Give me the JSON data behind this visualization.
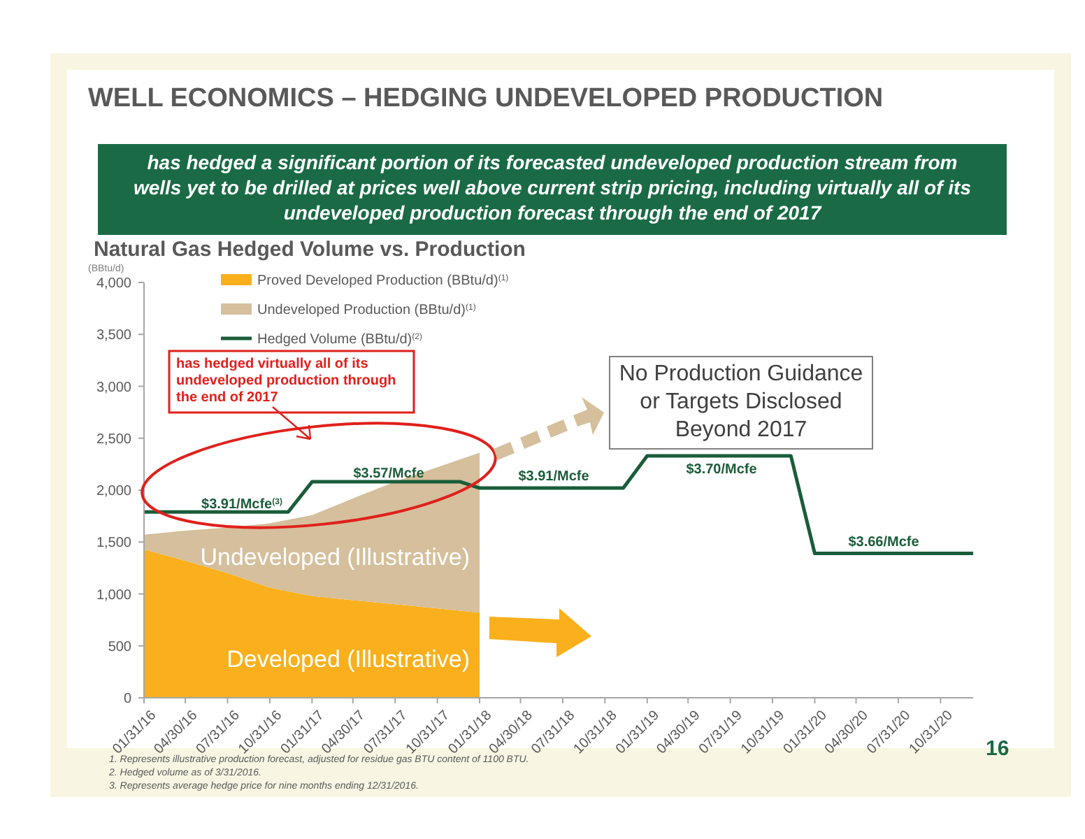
{
  "chart_data": {
    "type": "area",
    "title": "WELL ECONOMICS – HEDGING UNDEVELOPED  PRODUCTION",
    "subtitle": "has hedged a significant portion of its forecasted undeveloped production stream from wells yet to be drilled at prices well above current strip pricing, including virtually all of its undeveloped production forecast through the end of 2017",
    "ylabel": "(BBtu/d)",
    "stacked": true,
    "legend": "top left",
    "grid": false,
    "x": [
      "2016-01-31",
      "2016-04-30",
      "2016-07-31",
      "2016-10-31",
      "2017-01-31",
      "2017-04-30",
      "2017-07-31",
      "2017-10-31",
      "2018-01-31"
    ],
    "series": [
      {
        "name": "Proved Developed Production (BBtu/d)$^{(1)}$",
        "color": "#f9b01c",
        "values": [
          1430,
          1320,
          1200,
          1060,
          980,
          940,
          900,
          860,
          820
        ]
      },
      {
        "name": "Undeveloped Production (BBtu/d)$^{(1)}$",
        "color": "#d5bf9c",
        "values": [
          140,
          290,
          440,
          620,
          780,
          980,
          1180,
          1360,
          1540
        ]
      },
      {
        "name": "Hedged Volume (BBtu/d)$^{(2)}$",
        "type": "line",
        "color": "#1a5c3a",
        "x": [
          "2016-01-31",
          "2016-12-10",
          "2017-01-31",
          "2017-12-20",
          "2018-01-31",
          "2018-12-10",
          "2019-01-31",
          "2019-12-10",
          "2020-01-31",
          "2021-01-10"
        ],
        "values": [
          1790,
          1790,
          2080,
          2080,
          2020,
          2020,
          2330,
          2330,
          1390,
          1390
        ]
      }
    ],
    "xlim": [
      "2016-01-31",
      "2021-01-10"
    ],
    "xticks": [
      {
        "value": "2016-01-31",
        "label": "01/31/16"
      },
      {
        "value": "2016-04-30",
        "label": "04/30/16"
      },
      {
        "value": "2016-07-31",
        "label": "07/31/16"
      },
      {
        "value": "2016-10-31",
        "label": "10/31/16"
      },
      {
        "value": "2017-01-31",
        "label": "01/31/17"
      },
      {
        "value": "2017-04-30",
        "label": "04/30/17"
      },
      {
        "value": "2017-07-31",
        "label": "07/31/17"
      },
      {
        "value": "2017-10-31",
        "label": "10/31/17"
      },
      {
        "value": "2018-01-31",
        "label": "01/31/18"
      },
      {
        "value": "2018-04-30",
        "label": "04/30/18"
      },
      {
        "value": "2018-07-31",
        "label": "07/31/18"
      },
      {
        "value": "2018-10-31",
        "label": "10/31/18"
      },
      {
        "value": "2019-01-31",
        "label": "01/31/19"
      },
      {
        "value": "2019-04-30",
        "label": "04/30/19"
      },
      {
        "value": "2019-07-31",
        "label": "07/31/19"
      },
      {
        "value": "2019-10-31",
        "label": "10/31/19"
      },
      {
        "value": "2020-01-31",
        "label": "01/31/20"
      },
      {
        "value": "2020-04-30",
        "label": "04/30/20"
      },
      {
        "value": "2020-07-31",
        "label": "07/31/20"
      },
      {
        "value": "2020-10-31",
        "label": "10/31/20"
      }
    ],
    "ylim": [
      0,
      4000
    ],
    "yticks": [
      {
        "value": 0,
        "label": "0"
      },
      {
        "value": 500,
        "label": "500"
      },
      {
        "value": 1000,
        "label": "1,000"
      },
      {
        "value": 1500,
        "label": "1,500"
      },
      {
        "value": 2000,
        "label": "2,000"
      },
      {
        "value": 2500,
        "label": "2,500"
      },
      {
        "value": 3000,
        "label": "3,000"
      },
      {
        "value": 3500,
        "label": "3,500"
      },
      {
        "value": 4000,
        "label": "4,000"
      }
    ],
    "annotations": [
      "Natural Gas Hedged Volume vs. Production",
      "has hedged virtually all of its undeveloped production through the end of 2017",
      "No Production Guidance or Targets Disclosed Beyond 2017",
      "16",
      "1.   Represents illustrative production forecast, adjusted for residue gas BTU content of 1100 BTU.",
      "2.   Hedged volume as of 3/31/2016.",
      "3.   Represents average hedge price for nine months ending 12/31/2016.",
      "$3.91/Mcfe$^{(3)}$",
      "$3.57/Mcfe",
      "$3.91/Mcfe",
      "$3.70/Mcfe",
      "$3.66/Mcfe",
      "Undeveloped (Illustrative)",
      "Developed (Illustrative)"
    ]
  }
}
